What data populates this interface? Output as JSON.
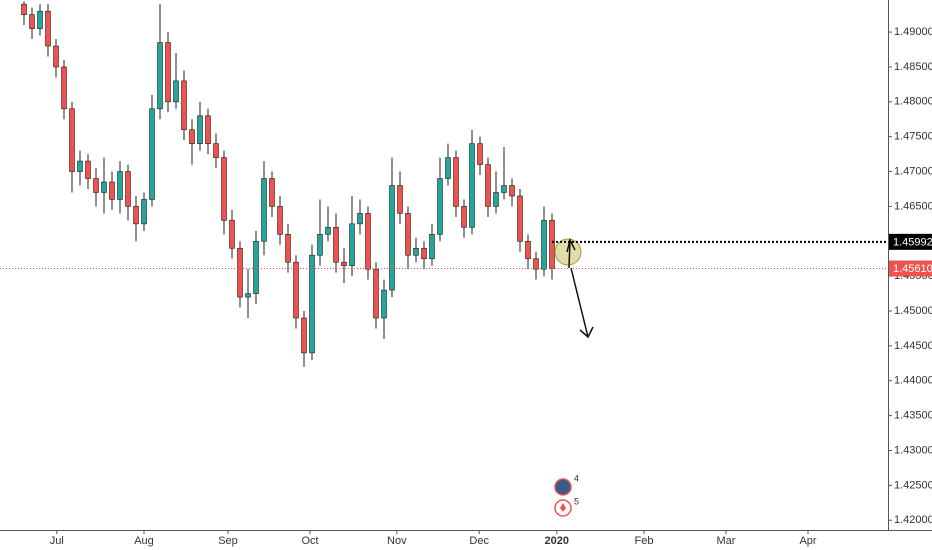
{
  "chart_data": {
    "type": "candlestick",
    "open": [
      1.494,
      1.4925,
      1.4905,
      1.493,
      1.488,
      1.485,
      1.479,
      1.47,
      1.4715,
      1.469,
      1.467,
      1.4685,
      1.466,
      1.47,
      1.465,
      1.4625,
      1.466,
      1.479,
      1.4885,
      1.48,
      1.483,
      1.476,
      1.474,
      1.478,
      1.474,
      1.472,
      1.463,
      1.459,
      1.452,
      1.4525,
      1.46,
      1.469,
      1.465,
      1.461,
      1.457,
      1.449,
      1.444,
      1.458,
      1.461,
      1.462,
      1.457,
      1.4565,
      1.4625,
      1.464,
      1.456,
      1.449,
      1.453,
      1.468,
      1.464,
      1.458,
      1.459,
      1.4575,
      1.461,
      1.469,
      1.472,
      1.465,
      1.462,
      1.474,
      1.471,
      1.465,
      1.467,
      1.468,
      1.4665,
      1.46,
      1.4575,
      1.456,
      1.463
    ],
    "high": [
      1.4944,
      1.4935,
      1.494,
      1.494,
      1.489,
      1.486,
      1.48,
      1.473,
      1.4725,
      1.4705,
      1.472,
      1.47,
      1.4715,
      1.471,
      1.4665,
      1.467,
      1.481,
      1.494,
      1.49,
      1.487,
      1.4845,
      1.4775,
      1.48,
      1.479,
      1.4755,
      1.473,
      1.4645,
      1.46,
      1.456,
      1.4615,
      1.4715,
      1.47,
      1.4665,
      1.4625,
      1.458,
      1.45,
      1.4595,
      1.466,
      1.465,
      1.464,
      1.459,
      1.4665,
      1.466,
      1.465,
      1.457,
      1.4545,
      1.472,
      1.47,
      1.465,
      1.4605,
      1.46,
      1.4625,
      1.472,
      1.474,
      1.473,
      1.466,
      1.476,
      1.475,
      1.472,
      1.47,
      1.4735,
      1.469,
      1.4675,
      1.461,
      1.4585,
      1.465,
      1.464
    ],
    "low": [
      1.491,
      1.489,
      1.4895,
      1.4865,
      1.4835,
      1.4775,
      1.467,
      1.468,
      1.4675,
      1.465,
      1.464,
      1.4645,
      1.464,
      1.463,
      1.46,
      1.4615,
      1.465,
      1.4775,
      1.4785,
      1.479,
      1.4745,
      1.471,
      1.473,
      1.4725,
      1.4705,
      1.461,
      1.4575,
      1.4505,
      1.449,
      1.451,
      1.458,
      1.4635,
      1.4595,
      1.4555,
      1.4475,
      1.442,
      1.443,
      1.4565,
      1.46,
      1.4555,
      1.454,
      1.455,
      1.461,
      1.4545,
      1.4475,
      1.446,
      1.452,
      1.4625,
      1.456,
      1.457,
      1.456,
      1.4565,
      1.46,
      1.468,
      1.4635,
      1.4605,
      1.461,
      1.4695,
      1.4635,
      1.464,
      1.466,
      1.465,
      1.4585,
      1.456,
      1.4545,
      1.455,
      1.4545
    ],
    "close": [
      1.4925,
      1.4905,
      1.493,
      1.488,
      1.485,
      1.479,
      1.47,
      1.4715,
      1.469,
      1.467,
      1.4685,
      1.466,
      1.47,
      1.465,
      1.4625,
      1.466,
      1.479,
      1.4885,
      1.48,
      1.483,
      1.476,
      1.474,
      1.478,
      1.474,
      1.472,
      1.463,
      1.459,
      1.452,
      1.4525,
      1.46,
      1.469,
      1.465,
      1.461,
      1.457,
      1.449,
      1.444,
      1.458,
      1.461,
      1.462,
      1.457,
      1.4565,
      1.4625,
      1.464,
      1.456,
      1.449,
      1.453,
      1.468,
      1.464,
      1.458,
      1.459,
      1.4575,
      1.461,
      1.469,
      1.472,
      1.465,
      1.462,
      1.474,
      1.471,
      1.465,
      1.467,
      1.468,
      1.4665,
      1.46,
      1.4575,
      1.456,
      1.463,
      1.4561
    ],
    "up_color": "#26a69a",
    "down_color": "#ef5350",
    "xlim": [
      -3,
      108
    ],
    "xticks": [
      {
        "value": 4.1,
        "label": "Jul"
      },
      {
        "value": 15,
        "label": "Aug"
      },
      {
        "value": 25.5,
        "label": "Sep"
      },
      {
        "value": 35.75,
        "label": "Oct"
      },
      {
        "value": 46.6,
        "label": "Nov"
      },
      {
        "value": 56.9,
        "label": "Dec"
      },
      {
        "value": 66.6,
        "label": "2020"
      },
      {
        "value": 77.5,
        "label": "Feb"
      },
      {
        "value": 87.75,
        "label": "Mar"
      },
      {
        "value": 98,
        "label": "Apr"
      }
    ],
    "ylim": [
      1.4186,
      1.4946
    ],
    "yticks": [
      {
        "value": 1.42,
        "label": "1.42000"
      },
      {
        "value": 1.425,
        "label": "1.42500"
      },
      {
        "value": 1.43,
        "label": "1.43000"
      },
      {
        "value": 1.435,
        "label": "1.43500"
      },
      {
        "value": 1.44,
        "label": "1.44000"
      },
      {
        "value": 1.445,
        "label": "1.44500"
      },
      {
        "value": 1.45,
        "label": "1.45000"
      },
      {
        "value": 1.455,
        "label": "1.45500"
      },
      {
        "value": 1.46,
        "label": "1.46000"
      },
      {
        "value": 1.465,
        "label": "1.46500"
      },
      {
        "value": 1.47,
        "label": "1.47000"
      },
      {
        "value": 1.475,
        "label": "1.47500"
      },
      {
        "value": 1.48,
        "label": "1.48000"
      },
      {
        "value": 1.485,
        "label": "1.48500"
      },
      {
        "value": 1.49,
        "label": "1.49000"
      }
    ],
    "price_lines": [
      {
        "value": 1.45992,
        "label": "1.45992",
        "color": "#000000"
      },
      {
        "value": 1.4561,
        "label": "1.45610",
        "color": "#ef5350"
      }
    ],
    "event_labels": [
      "4",
      "5"
    ],
    "grid": false
  }
}
